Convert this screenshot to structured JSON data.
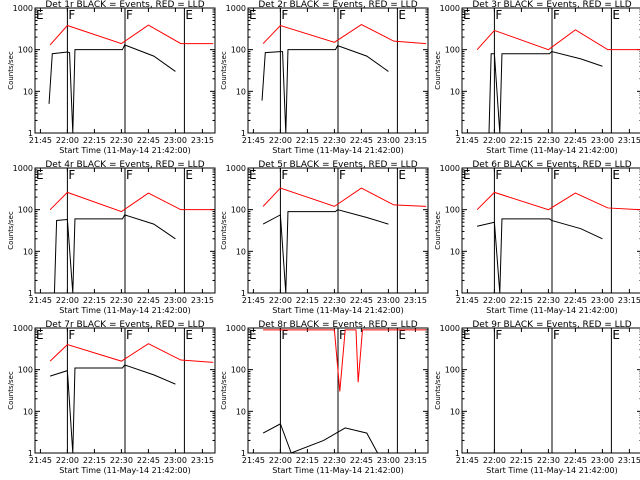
{
  "page": {
    "background": "#ffffff"
  },
  "chart_data": {
    "type": "line",
    "layout": "3x3 grid",
    "y_scale": "log",
    "ylim": [
      1,
      1000
    ],
    "y_ticks": [
      "1",
      "10",
      "100",
      "1000"
    ],
    "ylabel": "Counts/sec",
    "xlabel": "Start Time (11-May-14 21:42:00)",
    "x_ticks": [
      "21:45",
      "22:00",
      "22:15",
      "22:30",
      "22:45",
      "23:00",
      "23:15"
    ],
    "xlim": [
      "21:42",
      "23:22"
    ],
    "colors": {
      "events": "#000000",
      "lld": "#ff0000",
      "axes": "#000000"
    },
    "markers": [
      {
        "label": "E",
        "time": "21:42"
      },
      {
        "label": "F",
        "time": "22:00"
      },
      {
        "label": "F",
        "time": "22:32"
      },
      {
        "label": "E",
        "time": "23:05"
      }
    ],
    "panels": [
      {
        "title": "Det 1r BLACK = Events, RED = LLD",
        "series": [
          {
            "color": "red",
            "values": [
              [
                21.84,
                130
              ],
              [
                22.0,
                380
              ],
              [
                22.5,
                140
              ],
              [
                22.75,
                390
              ],
              [
                23.05,
                140
              ],
              [
                23.35,
                140
              ]
            ]
          },
          {
            "color": "black",
            "values": [
              [
                21.83,
                5
              ],
              [
                21.86,
                80
              ],
              [
                22.0,
                88
              ],
              [
                22.02,
                85
              ],
              [
                22.05,
                1
              ],
              [
                22.07,
                100
              ],
              [
                22.51,
                100
              ],
              [
                22.53,
                130
              ],
              [
                22.8,
                70
              ],
              [
                23.0,
                30
              ]
            ]
          }
        ]
      },
      {
        "title": "Det 2r BLACK = Events, RED = LLD",
        "series": [
          {
            "color": "red",
            "values": [
              [
                21.84,
                140
              ],
              [
                22.0,
                380
              ],
              [
                22.5,
                150
              ],
              [
                22.75,
                400
              ],
              [
                23.05,
                160
              ],
              [
                23.35,
                140
              ]
            ]
          },
          {
            "color": "black",
            "values": [
              [
                21.83,
                6
              ],
              [
                21.86,
                85
              ],
              [
                22.0,
                90
              ],
              [
                22.02,
                90
              ],
              [
                22.05,
                1
              ],
              [
                22.07,
                100
              ],
              [
                22.51,
                100
              ],
              [
                22.53,
                125
              ],
              [
                22.8,
                70
              ],
              [
                23.0,
                30
              ]
            ]
          }
        ]
      },
      {
        "title": "Det 3r BLACK = Events, RED = LLD",
        "series": [
          {
            "color": "red",
            "values": [
              [
                21.84,
                100
              ],
              [
                22.0,
                290
              ],
              [
                22.5,
                100
              ],
              [
                22.75,
                300
              ],
              [
                23.05,
                100
              ],
              [
                23.35,
                100
              ]
            ]
          },
          {
            "color": "black",
            "values": [
              [
                21.95,
                1
              ],
              [
                21.97,
                80
              ],
              [
                22.0,
                80
              ],
              [
                22.05,
                1
              ],
              [
                22.07,
                80
              ],
              [
                22.51,
                80
              ],
              [
                22.53,
                90
              ],
              [
                22.8,
                60
              ],
              [
                23.0,
                40
              ]
            ]
          }
        ]
      },
      {
        "title": "Det 4r BLACK = Events, RED = LLD",
        "series": [
          {
            "color": "red",
            "values": [
              [
                21.84,
                100
              ],
              [
                22.0,
                260
              ],
              [
                22.5,
                90
              ],
              [
                22.75,
                250
              ],
              [
                23.05,
                100
              ],
              [
                23.35,
                100
              ]
            ]
          },
          {
            "color": "black",
            "values": [
              [
                21.88,
                1
              ],
              [
                21.9,
                55
              ],
              [
                22.0,
                58
              ],
              [
                22.05,
                1
              ],
              [
                22.07,
                60
              ],
              [
                22.51,
                60
              ],
              [
                22.53,
                75
              ],
              [
                22.8,
                45
              ],
              [
                23.0,
                20
              ]
            ]
          }
        ]
      },
      {
        "title": "Det 5r BLACK = Events, RED = LLD",
        "series": [
          {
            "color": "red",
            "values": [
              [
                21.84,
                120
              ],
              [
                22.0,
                330
              ],
              [
                22.5,
                120
              ],
              [
                22.75,
                330
              ],
              [
                23.05,
                130
              ],
              [
                23.35,
                120
              ]
            ]
          },
          {
            "color": "black",
            "values": [
              [
                21.84,
                45
              ],
              [
                22.0,
                75
              ],
              [
                22.05,
                1
              ],
              [
                22.07,
                90
              ],
              [
                22.51,
                90
              ],
              [
                22.53,
                100
              ],
              [
                22.8,
                65
              ],
              [
                23.0,
                45
              ]
            ]
          }
        ]
      },
      {
        "title": "Det 6r BLACK = Events, RED = LLD",
        "series": [
          {
            "color": "red",
            "values": [
              [
                21.84,
                100
              ],
              [
                22.0,
                260
              ],
              [
                22.5,
                100
              ],
              [
                22.75,
                250
              ],
              [
                23.05,
                110
              ],
              [
                23.35,
                100
              ]
            ]
          },
          {
            "color": "black",
            "values": [
              [
                21.84,
                40
              ],
              [
                22.0,
                50
              ],
              [
                22.05,
                1
              ],
              [
                22.07,
                60
              ],
              [
                22.51,
                60
              ],
              [
                22.53,
                55
              ],
              [
                22.8,
                35
              ],
              [
                23.0,
                20
              ]
            ]
          }
        ]
      },
      {
        "title": "Det 7r BLACK = Events, RED = LLD",
        "series": [
          {
            "color": "red",
            "values": [
              [
                21.84,
                160
              ],
              [
                22.0,
                400
              ],
              [
                22.5,
                160
              ],
              [
                22.75,
                420
              ],
              [
                23.05,
                170
              ],
              [
                23.35,
                150
              ]
            ]
          },
          {
            "color": "black",
            "values": [
              [
                21.84,
                70
              ],
              [
                22.0,
                95
              ],
              [
                22.05,
                1
              ],
              [
                22.07,
                110
              ],
              [
                22.51,
                110
              ],
              [
                22.53,
                130
              ],
              [
                22.8,
                75
              ],
              [
                23.0,
                45
              ]
            ]
          }
        ]
      },
      {
        "title": "Det 8r BLACK = Events, RED = LLD",
        "series": [
          {
            "color": "red",
            "values": [
              [
                21.84,
                900
              ],
              [
                22.5,
                900
              ],
              [
                22.55,
                30
              ],
              [
                22.6,
                900
              ],
              [
                22.7,
                900
              ],
              [
                22.72,
                50
              ],
              [
                22.76,
                900
              ],
              [
                23.35,
                900
              ]
            ]
          },
          {
            "color": "black",
            "values": [
              [
                21.84,
                3
              ],
              [
                22.0,
                5
              ],
              [
                22.1,
                1
              ],
              [
                22.4,
                2
              ],
              [
                22.6,
                4
              ],
              [
                22.8,
                3
              ],
              [
                22.9,
                1
              ]
            ]
          }
        ]
      },
      {
        "title": "Det 9r BLACK = Events, RED = LLD",
        "series": []
      }
    ]
  }
}
